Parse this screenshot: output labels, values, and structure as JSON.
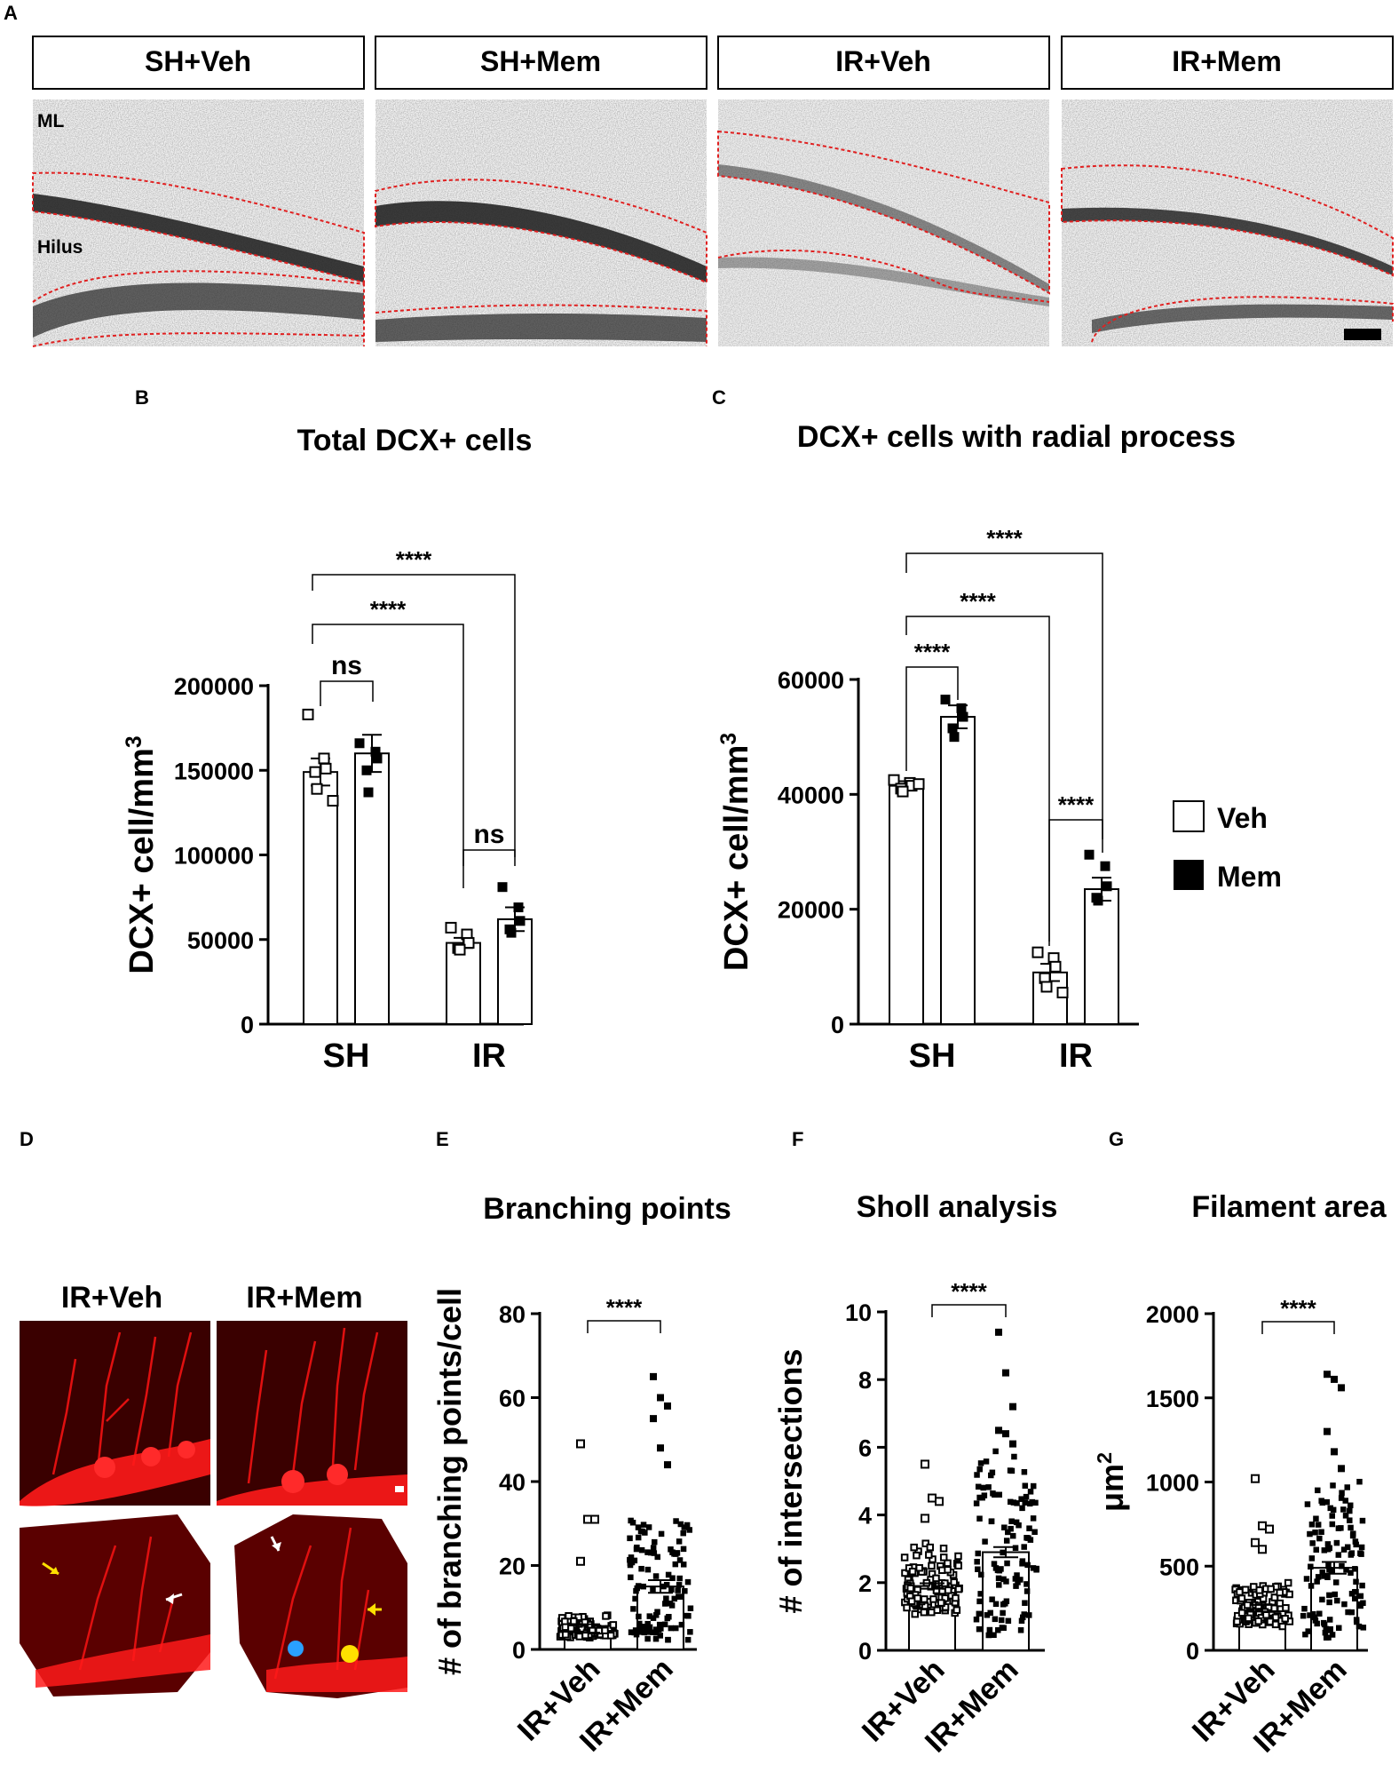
{
  "panel_letters": {
    "a": "A",
    "b": "B",
    "c": "C",
    "d": "D",
    "e": "E",
    "f": "F",
    "g": "G"
  },
  "panel_a": {
    "headers": [
      "SH+Veh",
      "SH+Mem",
      "IR+Veh",
      "IR+Mem"
    ],
    "region_label_ml": "ML",
    "region_label_hilus": "Hilus"
  },
  "panel_d": {
    "headers": [
      "IR+Veh",
      "IR+Mem"
    ]
  },
  "legend": {
    "items": [
      "Veh",
      "Mem"
    ]
  },
  "colors": {
    "veh_fill": "#ffffff",
    "mem_fill": "#000000",
    "outline_dashed": "#e02020",
    "confocal_red": "#cc0000",
    "bg_dark": "#1a0000"
  },
  "chart_data": [
    {
      "id": "B",
      "type": "bar",
      "title": "Total DCX+ cells",
      "xlabel": "",
      "ylabel": "DCX+ cell/mm3",
      "categories": [
        "SH",
        "IR"
      ],
      "ylim": [
        0,
        200000
      ],
      "yticks": [
        "0",
        "50000",
        "100000",
        "150000",
        "200000"
      ],
      "series": [
        {
          "name": "Veh",
          "values": [
            149000,
            48000
          ],
          "sem": [
            8000,
            3000
          ],
          "points": [
            [
              183000,
              157000,
              151000,
              149000,
              139000,
              132000
            ],
            [
              57000,
              53000,
              48000,
              45000,
              44000
            ]
          ]
        },
        {
          "name": "Mem",
          "values": [
            160000,
            62000
          ],
          "sem": [
            11000,
            7000
          ],
          "points": [
            [
              166000,
              161000,
              157000,
              150000,
              137000
            ],
            [
              81000,
              69000,
              61000,
              56000,
              54000
            ]
          ]
        }
      ],
      "comparisons": [
        {
          "label": "ns"
        },
        {
          "label": "****"
        },
        {
          "label": "****"
        },
        {
          "label": "ns"
        }
      ]
    },
    {
      "id": "C",
      "type": "bar",
      "title": "DCX+ cells with radial process",
      "xlabel": "",
      "ylabel": "DCX+ cell/mm3",
      "categories": [
        "SH",
        "IR"
      ],
      "ylim": [
        0,
        60000
      ],
      "yticks": [
        "0",
        "20000",
        "40000",
        "60000"
      ],
      "series": [
        {
          "name": "Veh",
          "values": [
            41500,
            9000
          ],
          "sem": [
            800,
            1500
          ],
          "points": [
            [
              42500,
              42000,
              41500,
              41000,
              40500,
              41800
            ],
            [
              12500,
              11500,
              10000,
              8000,
              6500,
              5500
            ]
          ]
        },
        {
          "name": "Mem",
          "values": [
            53500,
            23500
          ],
          "sem": [
            2000,
            2000
          ],
          "points": [
            [
              56500,
              55000,
              53500,
              51500,
              50000
            ],
            [
              29500,
              27500,
              24000,
              22000,
              21500
            ]
          ]
        }
      ],
      "comparisons": [
        {
          "label": "****"
        },
        {
          "label": "****"
        },
        {
          "label": "****"
        },
        {
          "label": "****"
        }
      ]
    },
    {
      "id": "E",
      "type": "scatter",
      "title": "Branching points",
      "xlabel": "",
      "ylabel": "# of branching points/cell",
      "categories": [
        "IR+Veh",
        "IR+Mem"
      ],
      "ylim": [
        0,
        80
      ],
      "yticks": [
        "0",
        "20",
        "40",
        "60",
        "80"
      ],
      "means": [
        5,
        15
      ],
      "sem": [
        1,
        1.5
      ],
      "outliers": [
        [
          49,
          31,
          31,
          21
        ],
        [
          65,
          60,
          58,
          55,
          48,
          44
        ]
      ],
      "comparisons": [
        {
          "label": "****"
        }
      ]
    },
    {
      "id": "F",
      "type": "scatter",
      "title": "Sholl analysis",
      "xlabel": "",
      "ylabel": "# of intersections",
      "categories": [
        "IR+Veh",
        "IR+Mem"
      ],
      "ylim": [
        0,
        10
      ],
      "yticks": [
        "0",
        "2",
        "4",
        "6",
        "8",
        "10"
      ],
      "means": [
        1.9,
        2.9
      ],
      "sem": [
        0.08,
        0.15
      ],
      "outliers": [
        [
          5.5,
          4.5,
          4.4,
          3.9
        ],
        [
          9.4,
          8.2,
          7.2,
          6.5,
          6.4,
          6.1
        ]
      ],
      "comparisons": [
        {
          "label": "****"
        }
      ]
    },
    {
      "id": "G",
      "type": "scatter",
      "title": "Filament area",
      "xlabel": "",
      "ylabel": "μm2",
      "categories": [
        "IR+Veh",
        "IR+Mem"
      ],
      "ylim": [
        0,
        2000
      ],
      "yticks": [
        "0",
        "500",
        "1000",
        "1500",
        "2000"
      ],
      "means": [
        250,
        490
      ],
      "sem": [
        20,
        35
      ],
      "outliers": [
        [
          1020,
          740,
          720,
          640,
          600
        ],
        [
          1640,
          1610,
          1560,
          1300,
          1180,
          1080
        ]
      ],
      "comparisons": [
        {
          "label": "****"
        }
      ]
    }
  ]
}
